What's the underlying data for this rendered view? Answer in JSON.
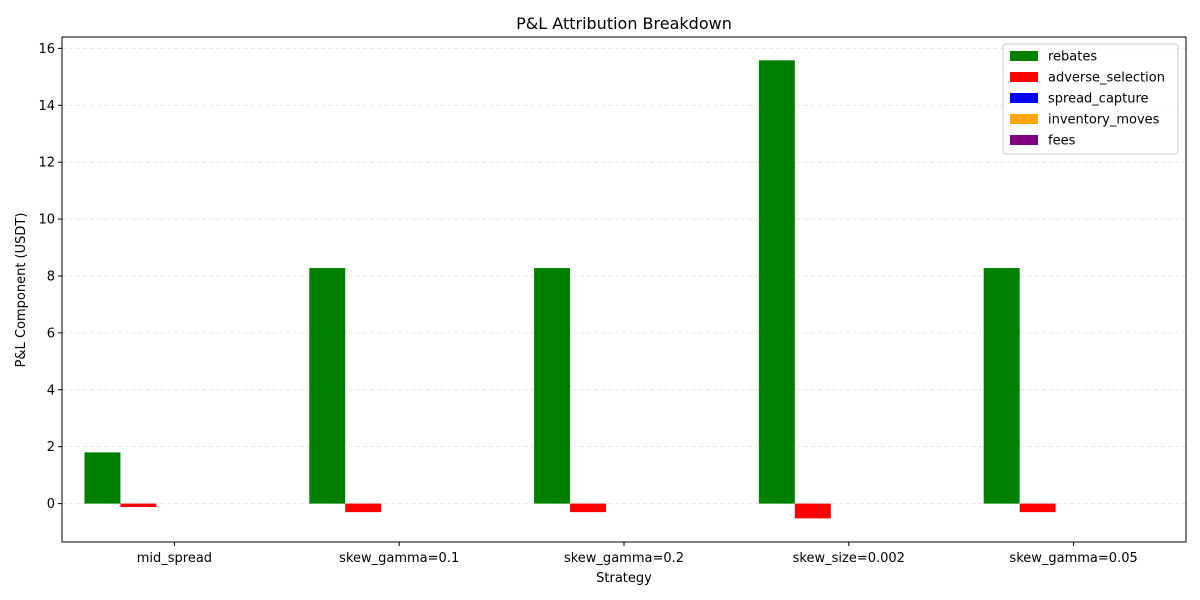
{
  "chart_data": {
    "type": "bar",
    "title": "P&L Attribution Breakdown",
    "xlabel": "Strategy",
    "ylabel": "P&L Component (USDT)",
    "categories": [
      "mid_spread",
      "skew_gamma=0.1",
      "skew_gamma=0.2",
      "skew_size=0.002",
      "skew_gamma=0.05"
    ],
    "series": [
      {
        "name": "rebates",
        "color": "#008000",
        "values": [
          1.8,
          8.28,
          8.28,
          15.58,
          8.28
        ]
      },
      {
        "name": "adverse_selection",
        "color": "#ff0000",
        "values": [
          -0.12,
          -0.3,
          -0.3,
          -0.52,
          -0.3
        ]
      },
      {
        "name": "spread_capture",
        "color": "#0000ff",
        "values": [
          0,
          0,
          0,
          0,
          0
        ]
      },
      {
        "name": "inventory_moves",
        "color": "#ffa500",
        "values": [
          0,
          0,
          0,
          0,
          0
        ]
      },
      {
        "name": "fees",
        "color": "#800080",
        "values": [
          0,
          0,
          0,
          0,
          0
        ]
      }
    ],
    "ylim": [
      -1.35,
      16.4
    ],
    "yticks": [
      0,
      2,
      4,
      6,
      8,
      10,
      12,
      14,
      16
    ],
    "ytick_labels": [
      "0",
      "2",
      "4",
      "6",
      "8",
      "10",
      "12",
      "14",
      "16"
    ],
    "grid": "y-dashed",
    "legend_position": "top-right"
  }
}
